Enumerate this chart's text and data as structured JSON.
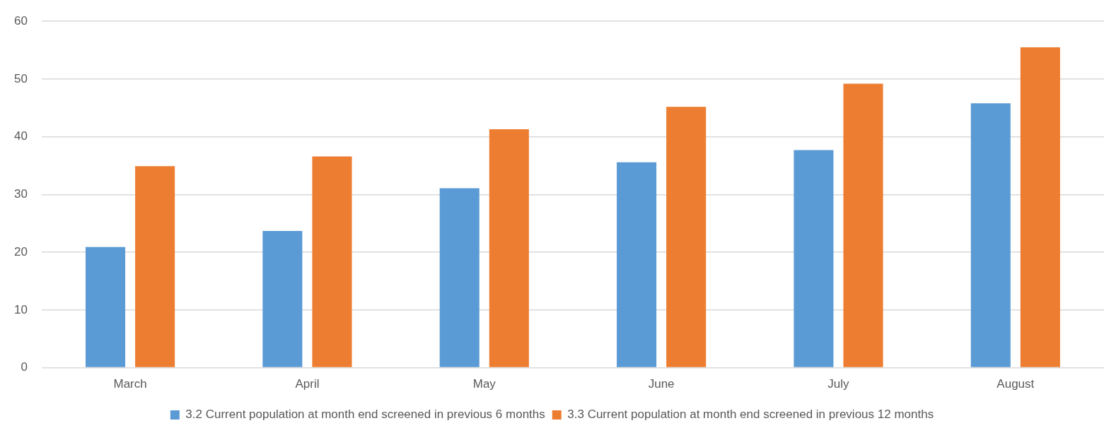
{
  "chart_data": {
    "type": "bar",
    "categories": [
      "March",
      "April",
      "May",
      "June",
      "July",
      "August"
    ],
    "series": [
      {
        "name": "3.2 Current population at month end screened in previous 6 months",
        "color": "#5b9bd5",
        "values": [
          20.9,
          23.7,
          31.1,
          35.6,
          37.7,
          45.8
        ]
      },
      {
        "name": "3.3 Current population at month end screened in previous 12 months",
        "color": "#ed7d31",
        "values": [
          34.9,
          36.6,
          41.3,
          45.2,
          49.2,
          55.5
        ]
      }
    ],
    "ylim": [
      0,
      60
    ],
    "yticks": [
      0,
      10,
      20,
      30,
      40,
      50,
      60
    ],
    "grid": "y",
    "legend": "bottom"
  }
}
